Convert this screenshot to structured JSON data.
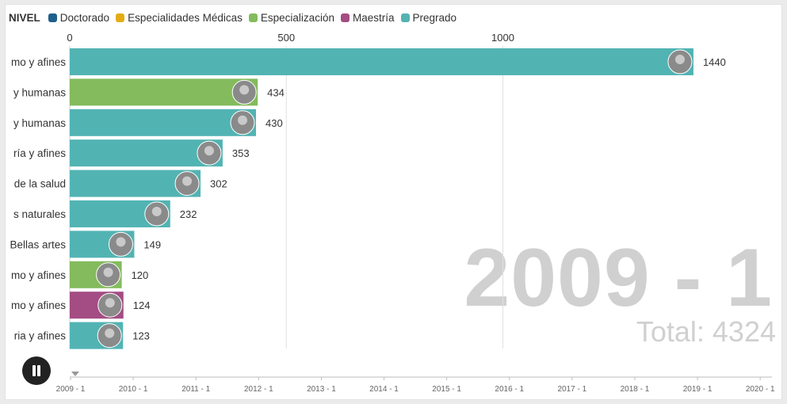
{
  "legend": {
    "title": "NIVEL",
    "items": [
      {
        "label": "Doctorado",
        "color": "#1f5f8b"
      },
      {
        "label": "Especialidades Médicas",
        "color": "#e3ac12"
      },
      {
        "label": "Especialización",
        "color": "#84bb5d"
      },
      {
        "label": "Maestría",
        "color": "#a44c84"
      },
      {
        "label": "Pregrado",
        "color": "#52b3b3"
      }
    ]
  },
  "overlay": {
    "period": "2009 - 1",
    "total_text": "Total: 4324"
  },
  "controls": {
    "play_state": "pause-icon"
  },
  "chart_data": {
    "type": "bar",
    "orientation": "horizontal",
    "xlim": [
      0,
      1600
    ],
    "x_ticks": [
      0,
      500,
      1000
    ],
    "x_tick_labels": [
      "0",
      "500",
      "1000"
    ],
    "grid": true,
    "categories": [
      "mo y afines",
      "y humanas",
      "y humanas",
      "ría y afines",
      "de la salud",
      "s naturales",
      "Bellas artes",
      "mo y afines",
      "mo y afines",
      "ria y afines"
    ],
    "values": [
      1440,
      434,
      430,
      353,
      302,
      232,
      149,
      120,
      124,
      123
    ],
    "value_labels": [
      "1440",
      "434",
      "430",
      "353",
      "302",
      "232",
      "149",
      "120",
      "124",
      "123"
    ],
    "levels": [
      "Pregrado",
      "Especialización",
      "Pregrado",
      "Pregrado",
      "Pregrado",
      "Pregrado",
      "Pregrado",
      "Especialización",
      "Maestría",
      "Pregrado"
    ],
    "timeline": [
      "2009 - 1",
      "2010 - 1",
      "2011 - 1",
      "2012 - 1",
      "2013 - 1",
      "2014 - 1",
      "2015 - 1",
      "2016 - 1",
      "2017 - 1",
      "2018 - 1",
      "2019 - 1",
      "2020 - 1"
    ],
    "current_index": 0
  }
}
